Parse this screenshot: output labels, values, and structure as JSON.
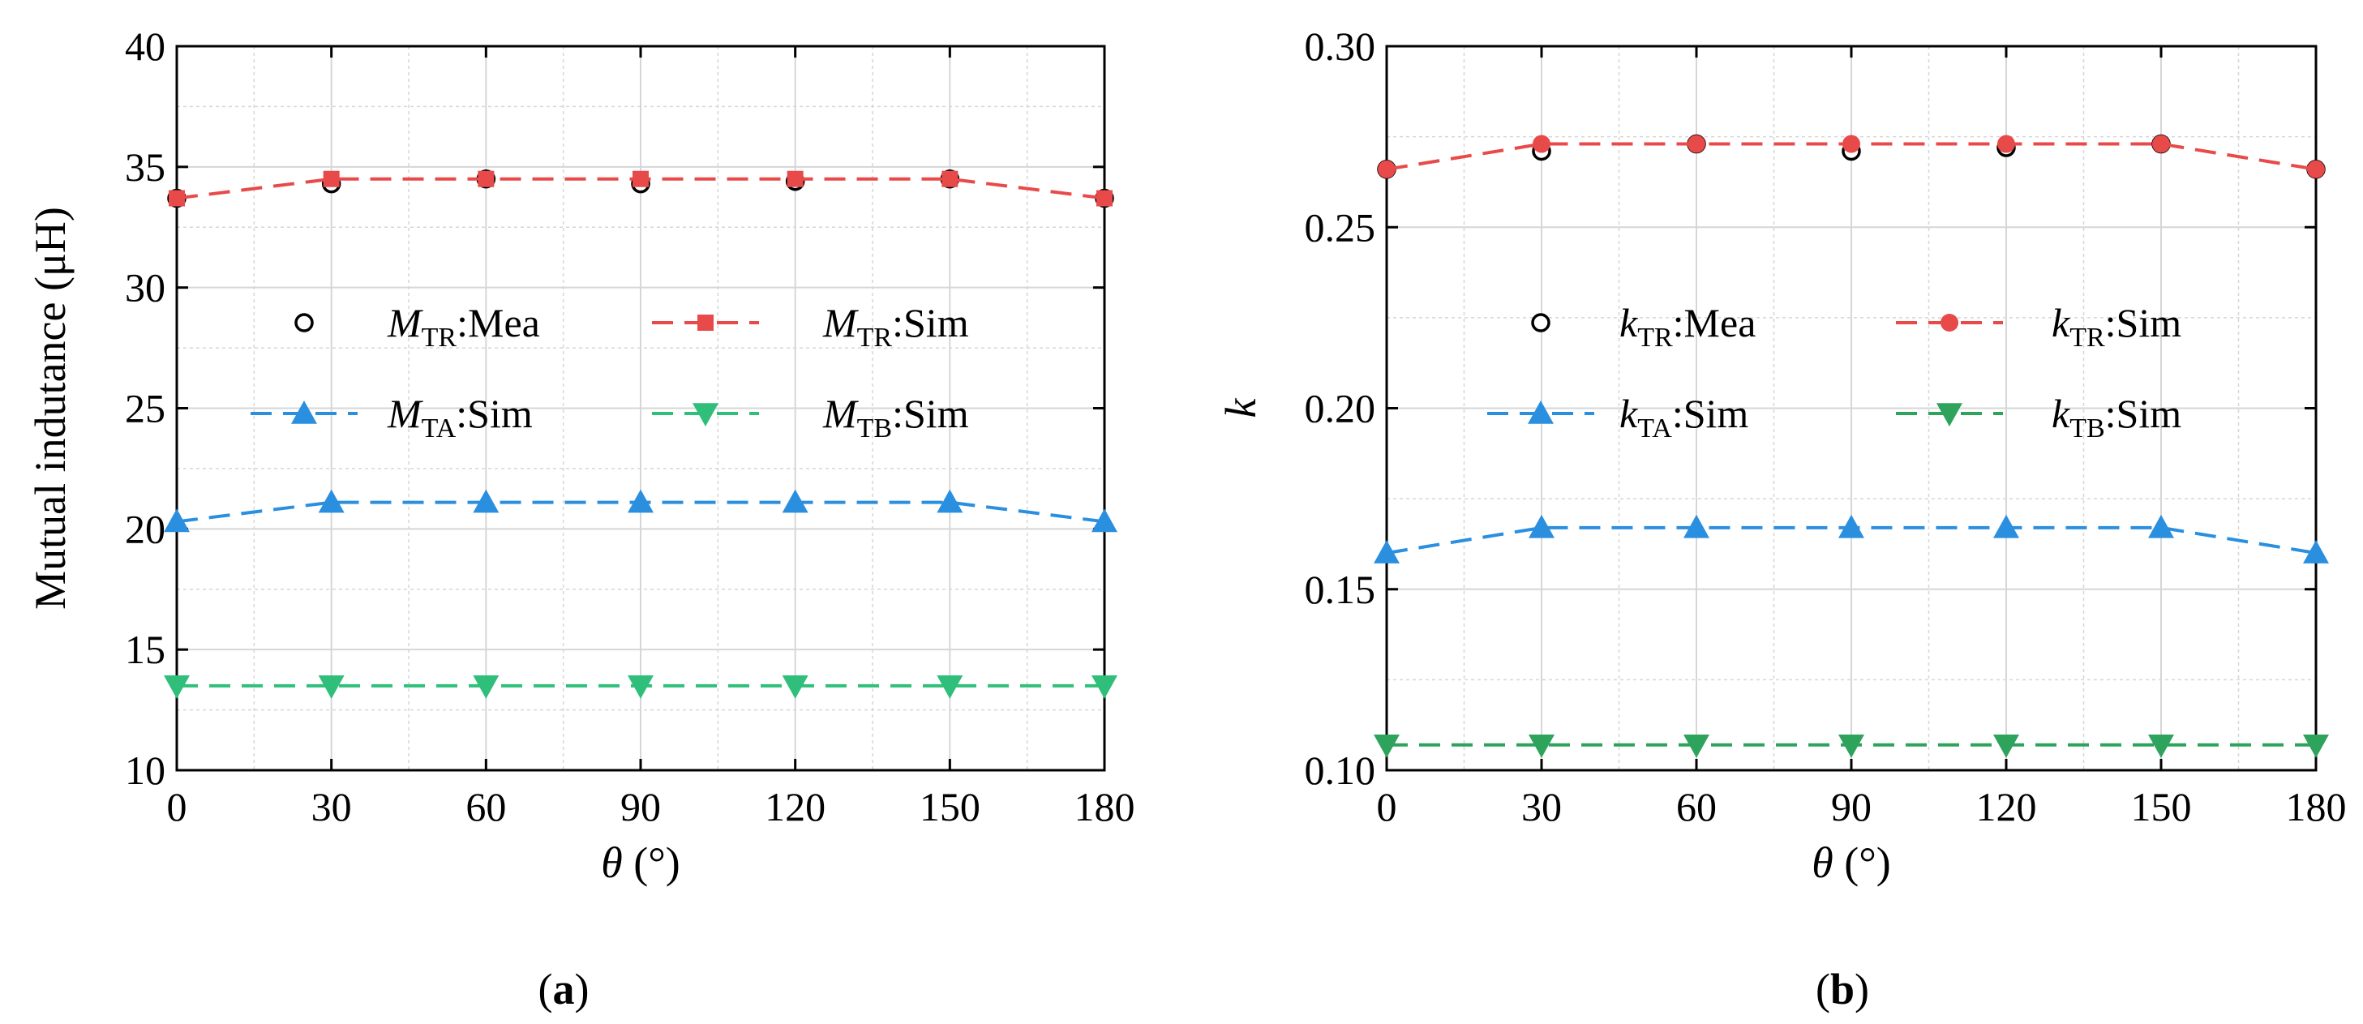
{
  "colors": {
    "measured": "#000000",
    "tr": "#e84a4a",
    "ta": "#2b8fe0",
    "tb": "#2fbf7a",
    "tb_b": "#2ea35c",
    "grid": "#d9d9d9"
  },
  "chart_data": [
    {
      "type": "line",
      "panel": "a",
      "caption": {
        "open": "(",
        "letter": "a",
        "close": ")"
      },
      "xlabel": {
        "symbol": "θ",
        "unit": " (°)"
      },
      "ylabel": "Mutual indutance (μH)",
      "xlim": [
        0,
        180
      ],
      "ylim": [
        10,
        40
      ],
      "xticks": [
        0,
        30,
        60,
        90,
        120,
        150,
        180
      ],
      "xtick_labels": [
        "0",
        "30",
        "60",
        "90",
        "120",
        "150",
        "180"
      ],
      "yticks": [
        10,
        15,
        20,
        25,
        30,
        35,
        40
      ],
      "ytick_labels": [
        "10",
        "15",
        "20",
        "25",
        "30",
        "35",
        "40"
      ],
      "x": [
        0,
        30,
        60,
        90,
        120,
        150,
        180
      ],
      "series": [
        {
          "key": "mea",
          "marker": "circle-open",
          "line": false,
          "color": "#000000",
          "values": [
            33.7,
            34.3,
            34.5,
            34.3,
            34.4,
            34.5,
            33.7
          ],
          "legend": {
            "sym": "M",
            "sub": "TR",
            "suffix": ":Mea"
          }
        },
        {
          "key": "tr",
          "marker": "square",
          "line": true,
          "color": "#e84a4a",
          "values": [
            33.7,
            34.5,
            34.5,
            34.5,
            34.5,
            34.5,
            33.7
          ],
          "legend": {
            "sym": "M",
            "sub": "TR",
            "suffix": ":Sim"
          }
        },
        {
          "key": "ta",
          "marker": "triangle-up",
          "line": true,
          "color": "#2b8fe0",
          "values": [
            20.3,
            21.1,
            21.1,
            21.1,
            21.1,
            21.1,
            20.3
          ],
          "legend": {
            "sym": "M",
            "sub": "TA",
            "suffix": ":Sim"
          }
        },
        {
          "key": "tb",
          "marker": "triangle-down",
          "line": true,
          "color": "#2fbf7a",
          "values": [
            13.5,
            13.5,
            13.5,
            13.5,
            13.5,
            13.5,
            13.5
          ],
          "legend": {
            "sym": "M",
            "sub": "TB",
            "suffix": ":Sim"
          }
        }
      ]
    },
    {
      "type": "line",
      "panel": "b",
      "caption": {
        "open": "(",
        "letter": "b",
        "close": ")"
      },
      "xlabel": {
        "symbol": "θ",
        "unit": " (°)"
      },
      "ylabel": "k",
      "xlim": [
        0,
        180
      ],
      "ylim": [
        0.1,
        0.3
      ],
      "xticks": [
        0,
        30,
        60,
        90,
        120,
        150,
        180
      ],
      "xtick_labels": [
        "0",
        "30",
        "60",
        "90",
        "120",
        "150",
        "180"
      ],
      "yticks": [
        0.1,
        0.15,
        0.2,
        0.25,
        0.3
      ],
      "ytick_labels": [
        "0.10",
        "0.15",
        "0.20",
        "0.25",
        "0.30"
      ],
      "x": [
        0,
        30,
        60,
        90,
        120,
        150,
        180
      ],
      "series": [
        {
          "key": "mea",
          "marker": "circle-open",
          "line": false,
          "color": "#000000",
          "values": [
            0.266,
            0.271,
            0.273,
            0.271,
            0.272,
            0.273,
            0.266
          ],
          "legend": {
            "sym": "k",
            "sub": "TR",
            "suffix": ":Mea"
          }
        },
        {
          "key": "tr",
          "marker": "circle",
          "line": true,
          "color": "#e84a4a",
          "values": [
            0.266,
            0.273,
            0.273,
            0.273,
            0.273,
            0.273,
            0.266
          ],
          "legend": {
            "sym": "k",
            "sub": "TR",
            "suffix": ":Sim"
          }
        },
        {
          "key": "ta",
          "marker": "triangle-up",
          "line": true,
          "color": "#2b8fe0",
          "values": [
            0.16,
            0.167,
            0.167,
            0.167,
            0.167,
            0.167,
            0.16
          ],
          "legend": {
            "sym": "k",
            "sub": "TA",
            "suffix": ":Sim"
          }
        },
        {
          "key": "tb",
          "marker": "triangle-down",
          "line": true,
          "color": "#2ea35c",
          "values": [
            0.107,
            0.107,
            0.107,
            0.107,
            0.107,
            0.107,
            0.107
          ],
          "legend": {
            "sym": "k",
            "sub": "TB",
            "suffix": ":Sim"
          }
        }
      ]
    }
  ]
}
